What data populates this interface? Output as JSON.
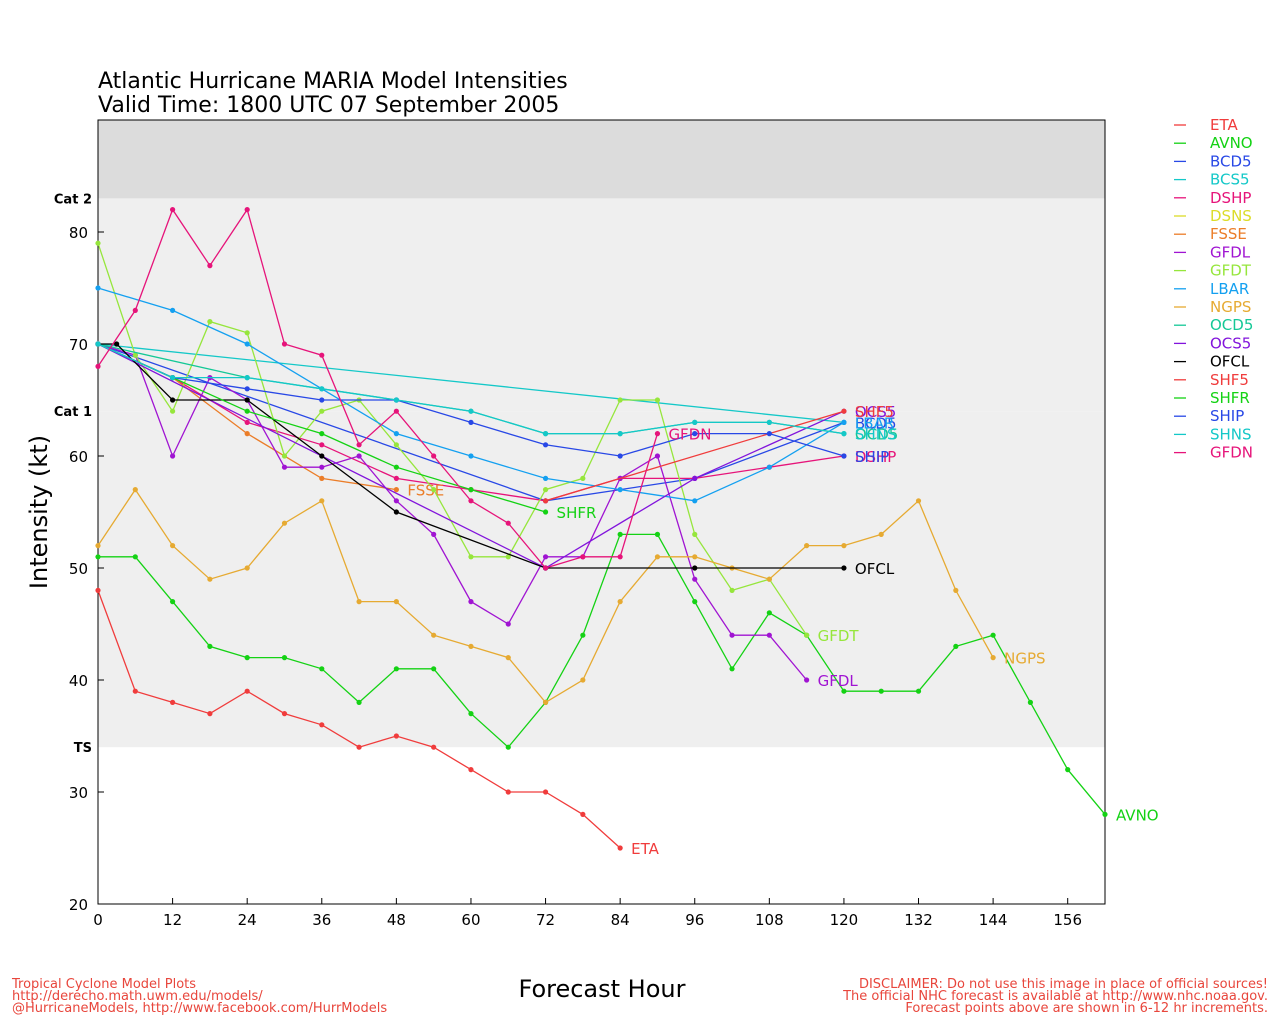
{
  "chart_data": {
    "type": "line",
    "title_lines": [
      "Atlantic Hurricane MARIA Model Intensities",
      "Valid Time: 1800 UTC 07 September 2005"
    ],
    "xlabel": "Forecast Hour",
    "ylabel": "Intensity (kt)",
    "xlim": [
      0,
      162
    ],
    "ylim": [
      20,
      90
    ],
    "xticks": [
      0,
      12,
      24,
      36,
      48,
      60,
      72,
      84,
      96,
      108,
      120,
      132,
      144,
      156
    ],
    "yticks": [
      20,
      30,
      40,
      50,
      60,
      70,
      80
    ],
    "bands": [
      {
        "label": "TS",
        "from": 34,
        "to": 64,
        "color": "#efefef"
      },
      {
        "label": "Cat 1",
        "from": 64,
        "to": 83,
        "color": "#efefef"
      },
      {
        "label": "Cat 2",
        "from": 83,
        "to": 90,
        "color": "#dcdcdc"
      }
    ],
    "legend_position": "right",
    "series": [
      {
        "name": "ETA",
        "color": "#f03c3c",
        "end_label": "ETA",
        "x": [
          0,
          6,
          12,
          18,
          24,
          30,
          36,
          42,
          48,
          54,
          60,
          66,
          72,
          78,
          84
        ],
        "y": [
          48,
          39,
          38,
          37,
          39,
          37,
          36,
          34,
          35,
          34,
          32,
          30,
          30,
          28,
          25
        ]
      },
      {
        "name": "AVNO",
        "color": "#14d214",
        "end_label": "AVNO",
        "x": [
          0,
          6,
          12,
          18,
          24,
          30,
          36,
          42,
          48,
          54,
          60,
          66,
          72,
          78,
          84,
          90,
          96,
          102,
          108,
          114,
          120,
          126,
          132,
          138,
          144,
          150,
          156,
          162
        ],
        "y": [
          51,
          51,
          47,
          43,
          42,
          42,
          41,
          38,
          41,
          41,
          37,
          34,
          38,
          44,
          53,
          53,
          47,
          41,
          46,
          44,
          39,
          39,
          39,
          43,
          44,
          38,
          32,
          28
        ]
      },
      {
        "name": "BCD5",
        "color": "#2848e6",
        "end_label": "BCD5",
        "x": [
          0,
          72,
          96,
          120
        ],
        "y": [
          70,
          56,
          58,
          63
        ]
      },
      {
        "name": "BCS5",
        "color": "#14c8c8",
        "end_label": "",
        "x": [
          0,
          120
        ],
        "y": [
          70,
          63
        ]
      },
      {
        "name": "DSHP",
        "color": "#e6147a",
        "end_label": "DSHP",
        "x": [
          0,
          12,
          24,
          36,
          48,
          60,
          72,
          84,
          96,
          108,
          120
        ],
        "y": [
          70,
          67,
          63,
          61,
          58,
          57,
          56,
          58,
          58,
          59,
          60
        ]
      },
      {
        "name": "DSNS",
        "color": "#dcdc28",
        "end_label": "",
        "x": [
          0
        ],
        "y": [
          70
        ]
      },
      {
        "name": "FSSE",
        "color": "#eb7d28",
        "end_label": "FSSE",
        "x": [
          0,
          12,
          24,
          36,
          48
        ],
        "y": [
          70,
          67,
          62,
          58,
          57
        ]
      },
      {
        "name": "GFDL",
        "color": "#a014d2",
        "end_label": "GFDL",
        "x": [
          0,
          6,
          12,
          18,
          24,
          30,
          36,
          42,
          48,
          54,
          60,
          66,
          72,
          78,
          84,
          90,
          96,
          102,
          108,
          114
        ],
        "y": [
          70,
          69,
          60,
          67,
          65,
          59,
          59,
          60,
          56,
          53,
          47,
          45,
          51,
          51,
          58,
          60,
          49,
          44,
          44,
          40
        ]
      },
      {
        "name": "GFDT",
        "color": "#96e63c",
        "end_label": "GFDT",
        "x": [
          0,
          6,
          12,
          18,
          24,
          30,
          36,
          42,
          48,
          54,
          60,
          66,
          72,
          78,
          84,
          90,
          96,
          102,
          108,
          114
        ],
        "y": [
          79,
          69,
          64,
          72,
          71,
          60,
          64,
          65,
          61,
          57,
          51,
          51,
          57,
          58,
          65,
          65,
          53,
          48,
          49,
          44
        ]
      },
      {
        "name": "LBAR",
        "color": "#14a0f0",
        "end_label": "LBAR",
        "x": [
          0,
          12,
          24,
          36,
          48,
          60,
          72,
          84,
          96,
          108,
          120
        ],
        "y": [
          75,
          73,
          70,
          66,
          62,
          60,
          58,
          57,
          56,
          59,
          63
        ]
      },
      {
        "name": "NGPS",
        "color": "#e6aa32",
        "end_label": "NGPS",
        "x": [
          0,
          6,
          12,
          18,
          24,
          30,
          36,
          42,
          48,
          54,
          60,
          66,
          72,
          78,
          84,
          90,
          96,
          102,
          108,
          114,
          120,
          126,
          132,
          138,
          144
        ],
        "y": [
          52,
          57,
          52,
          49,
          50,
          54,
          56,
          47,
          47,
          44,
          43,
          42,
          38,
          40,
          47,
          51,
          51,
          50,
          49,
          52,
          52,
          53,
          56,
          48,
          42
        ]
      },
      {
        "name": "OCD5",
        "color": "#14c896",
        "end_label": "OCD5",
        "x": [
          0,
          24,
          48,
          60,
          72,
          84,
          96,
          108,
          120
        ],
        "y": [
          70,
          67,
          65,
          64,
          62,
          62,
          63,
          63,
          62
        ]
      },
      {
        "name": "OCS5",
        "color": "#8214dc",
        "end_label": "OCS5",
        "x": [
          0,
          72,
          96,
          120
        ],
        "y": [
          70,
          50,
          58,
          64
        ]
      },
      {
        "name": "OFCL",
        "color": "#000000",
        "end_label": "OFCL",
        "x": [
          0,
          3,
          12,
          24,
          36,
          48,
          72,
          96,
          120
        ],
        "y": [
          70,
          70,
          65,
          65,
          60,
          55,
          50,
          50,
          50
        ]
      },
      {
        "name": "SHF5",
        "color": "#f03c3c",
        "end_label": "SHF5",
        "x": [
          72,
          120
        ],
        "y": [
          56,
          64
        ]
      },
      {
        "name": "SHFR",
        "color": "#14d214",
        "end_label": "SHFR",
        "x": [
          0,
          12,
          24,
          36,
          48,
          60,
          72
        ],
        "y": [
          70,
          67,
          64,
          62,
          59,
          57,
          55
        ]
      },
      {
        "name": "SHIP",
        "color": "#2848e6",
        "end_label": "SHIP",
        "x": [
          0,
          12,
          24,
          36,
          48,
          60,
          72,
          84,
          96,
          108,
          120
        ],
        "y": [
          70,
          67,
          66,
          65,
          65,
          63,
          61,
          60,
          62,
          62,
          60
        ]
      },
      {
        "name": "SHNS",
        "color": "#14c8c8",
        "end_label": "SHNS",
        "x": [
          0,
          12,
          24,
          36,
          48,
          60,
          72,
          84,
          96,
          108,
          120
        ],
        "y": [
          70,
          67,
          67,
          66,
          65,
          64,
          62,
          62,
          63,
          63,
          62
        ]
      },
      {
        "name": "GFDN",
        "color": "#e6147a",
        "end_label": "GFDN",
        "x": [
          0,
          6,
          12,
          18,
          24,
          30,
          36,
          42,
          48,
          54,
          60,
          66,
          72,
          78,
          84,
          90
        ],
        "y": [
          68,
          73,
          82,
          77,
          82,
          70,
          69,
          61,
          64,
          60,
          56,
          54,
          50,
          51,
          51,
          62
        ]
      }
    ]
  },
  "footer": {
    "left": [
      "Tropical Cyclone Model Plots",
      "http://derecho.math.uwm.edu/models/",
      "@HurricaneModels, http://www.facebook.com/HurrModels"
    ],
    "right": [
      "DISCLAIMER: Do not use this image in place of official sources!",
      "The official NHC forecast is available at http://www.nhc.noaa.gov.",
      "Forecast points above are shown in 6-12 hr increments."
    ]
  }
}
